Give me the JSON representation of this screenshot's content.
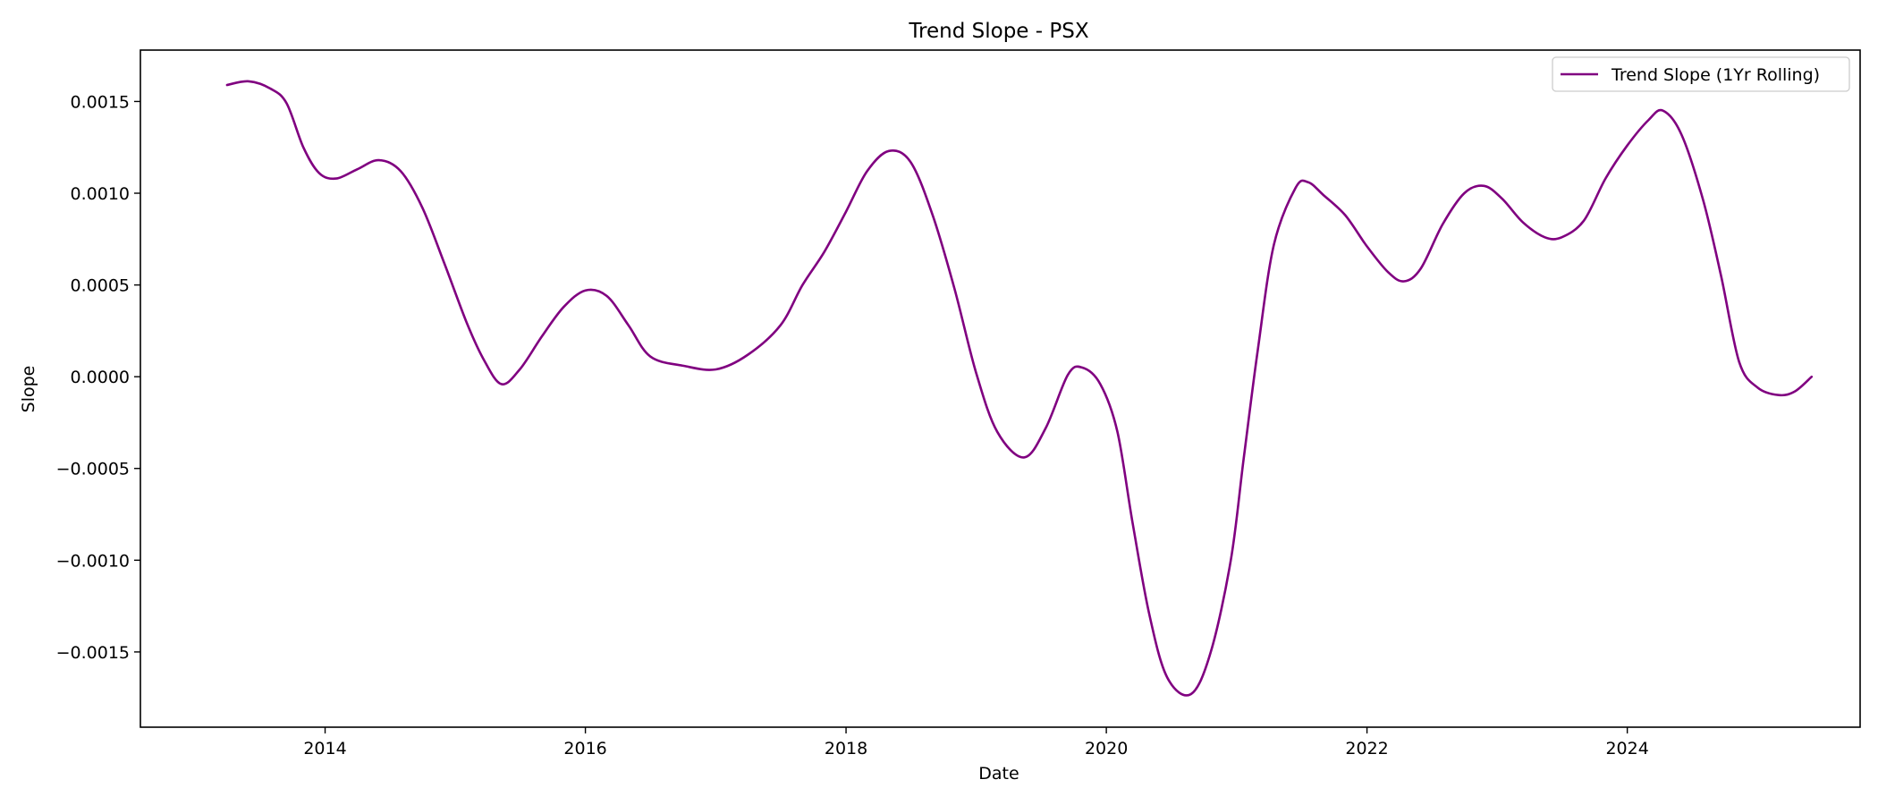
{
  "chart_data": {
    "type": "line",
    "title": "Trend Slope - PSX",
    "xlabel": "Date",
    "ylabel": "Slope",
    "xlim": [
      "2012-08-01",
      "2025-10-15"
    ],
    "ylim": [
      -0.00191,
      0.00178
    ],
    "x_ticks": [
      "2014",
      "2016",
      "2018",
      "2020",
      "2022",
      "2024"
    ],
    "y_ticks": [
      {
        "value": 0.0015,
        "label": "0.0015"
      },
      {
        "value": 0.001,
        "label": "0.0010"
      },
      {
        "value": 0.0005,
        "label": "0.0005"
      },
      {
        "value": 0.0,
        "label": "0.0000"
      },
      {
        "value": -0.0005,
        "label": "−0.0005"
      },
      {
        "value": -0.001,
        "label": "−0.0010"
      },
      {
        "value": -0.0015,
        "label": "−0.0015"
      }
    ],
    "grid": false,
    "legend": {
      "position": "top-right"
    },
    "series": [
      {
        "name": "Trend Slope (1Yr Rolling)",
        "color": "#800080",
        "points": [
          [
            "2013-04-01",
            0.00159
          ],
          [
            "2013-06-01",
            0.00161
          ],
          [
            "2013-08-01",
            0.00157
          ],
          [
            "2013-09-15",
            0.00149
          ],
          [
            "2013-11-01",
            0.00125
          ],
          [
            "2013-12-15",
            0.00111
          ],
          [
            "2014-02-01",
            0.00108
          ],
          [
            "2014-04-01",
            0.00113
          ],
          [
            "2014-06-01",
            0.00118
          ],
          [
            "2014-08-01",
            0.00112
          ],
          [
            "2014-10-01",
            0.00092
          ],
          [
            "2014-12-01",
            0.00062
          ],
          [
            "2015-02-01",
            0.0003
          ],
          [
            "2015-03-20",
            0.0001
          ],
          [
            "2015-05-10",
            -4e-05
          ],
          [
            "2015-07-01",
            4e-05
          ],
          [
            "2015-09-01",
            0.00022
          ],
          [
            "2015-11-01",
            0.00038
          ],
          [
            "2016-01-01",
            0.00047
          ],
          [
            "2016-03-01",
            0.00044
          ],
          [
            "2016-05-01",
            0.00028
          ],
          [
            "2016-07-01",
            0.00011
          ],
          [
            "2016-10-01",
            6e-05
          ],
          [
            "2017-01-01",
            4e-05
          ],
          [
            "2017-04-01",
            0.00012
          ],
          [
            "2017-07-01",
            0.00028
          ],
          [
            "2017-09-01",
            0.0005
          ],
          [
            "2017-11-01",
            0.00068
          ],
          [
            "2018-01-01",
            0.0009
          ],
          [
            "2018-03-01",
            0.00112
          ],
          [
            "2018-05-01",
            0.00123
          ],
          [
            "2018-07-01",
            0.00117
          ],
          [
            "2018-09-01",
            0.00088
          ],
          [
            "2018-11-01",
            0.00048
          ],
          [
            "2019-01-01",
            2e-05
          ],
          [
            "2019-03-01",
            -0.0003
          ],
          [
            "2019-05-15",
            -0.00044
          ],
          [
            "2019-07-15",
            -0.00028
          ],
          [
            "2019-09-15",
            1e-05
          ],
          [
            "2019-10-25",
            5e-05
          ],
          [
            "2019-12-15",
            -4e-05
          ],
          [
            "2020-02-01",
            -0.0003
          ],
          [
            "2020-03-15",
            -0.0008
          ],
          [
            "2020-05-01",
            -0.0013
          ],
          [
            "2020-06-20",
            -0.00164
          ],
          [
            "2020-08-25",
            -0.00173
          ],
          [
            "2020-10-20",
            -0.0015
          ],
          [
            "2020-12-15",
            -0.001
          ],
          [
            "2021-01-20",
            -0.00045
          ],
          [
            "2021-03-01",
            0.00015
          ],
          [
            "2021-04-15",
            0.00072
          ],
          [
            "2021-06-15",
            0.00103
          ],
          [
            "2021-07-20",
            0.00106
          ],
          [
            "2021-09-01",
            0.00099
          ],
          [
            "2021-11-01",
            0.00088
          ],
          [
            "2022-01-01",
            0.00071
          ],
          [
            "2022-03-01",
            0.00057
          ],
          [
            "2022-04-15",
            0.00052
          ],
          [
            "2022-06-01",
            0.00059
          ],
          [
            "2022-08-01",
            0.00083
          ],
          [
            "2022-10-01",
            0.001
          ],
          [
            "2022-11-25",
            0.00104
          ],
          [
            "2023-01-15",
            0.00097
          ],
          [
            "2023-03-15",
            0.00084
          ],
          [
            "2023-05-15",
            0.00076
          ],
          [
            "2023-07-01",
            0.00076
          ],
          [
            "2023-09-01",
            0.00085
          ],
          [
            "2023-11-01",
            0.00108
          ],
          [
            "2024-01-01",
            0.00126
          ],
          [
            "2024-03-01",
            0.0014
          ],
          [
            "2024-04-10",
            0.00145
          ],
          [
            "2024-06-01",
            0.00132
          ],
          [
            "2024-08-01",
            0.00096
          ],
          [
            "2024-09-20",
            0.00055
          ],
          [
            "2024-11-10",
            8e-05
          ],
          [
            "2025-01-01",
            -6e-05
          ],
          [
            "2025-03-01",
            -0.0001
          ],
          [
            "2025-04-15",
            -8e-05
          ],
          [
            "2025-06-01",
            0.0
          ]
        ]
      }
    ]
  }
}
